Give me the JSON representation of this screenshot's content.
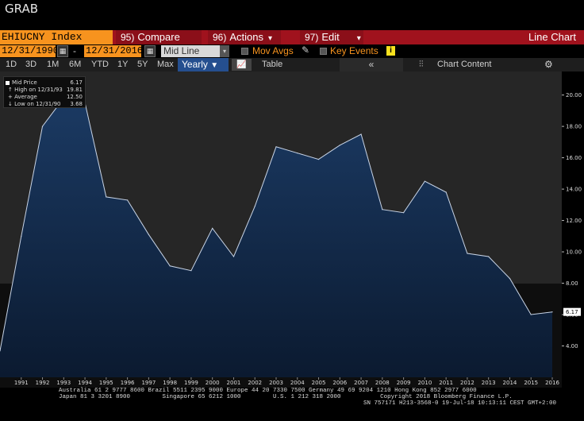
{
  "window": {
    "title": "GRAB"
  },
  "command_bar": {
    "ticker": "EHIUCNY Index",
    "compare": {
      "num": "95)",
      "label": "Compare"
    },
    "actions": {
      "num": "96)",
      "label": "Actions"
    },
    "edit": {
      "num": "97)",
      "label": "Edit"
    },
    "chart_type": "Line Chart"
  },
  "date_bar": {
    "start_date": "12/31/1990",
    "separator": "-",
    "end_date": "12/31/2016",
    "line_type": "Mid Line",
    "mov_avgs": "Mov Avgs",
    "key_events": "Key Events",
    "info": "i"
  },
  "range_bar": {
    "ranges": [
      "1D",
      "3D",
      "1M",
      "6M",
      "YTD",
      "1Y",
      "5Y",
      "Max"
    ],
    "frequency": "Yearly",
    "table": "Table",
    "collapse": "«",
    "chart_content": "Chart Content"
  },
  "legend": {
    "rows": [
      {
        "label": "Mid Price",
        "value": "6.17"
      },
      {
        "label": "High on 12/31/93",
        "value": "19.81"
      },
      {
        "label": "Average",
        "value": "12.50"
      },
      {
        "label": "Low on 12/31/90",
        "value": "3.68"
      }
    ]
  },
  "chart_data": {
    "type": "area",
    "x": [
      1990,
      1991,
      1992,
      1993,
      1994,
      1995,
      1996,
      1997,
      1998,
      1999,
      2000,
      2001,
      2002,
      2003,
      2004,
      2005,
      2006,
      2007,
      2008,
      2009,
      2010,
      2011,
      2012,
      2013,
      2014,
      2015,
      2016
    ],
    "values": [
      3.68,
      11.0,
      18.0,
      19.81,
      19.5,
      13.5,
      13.3,
      11.1,
      9.1,
      8.8,
      11.5,
      9.7,
      12.9,
      16.7,
      16.3,
      15.9,
      16.8,
      17.5,
      12.7,
      12.5,
      14.5,
      13.8,
      9.9,
      9.7,
      8.3,
      6.0,
      6.17
    ],
    "x_tick_labels": [
      "1991",
      "1992",
      "1993",
      "1994",
      "1995",
      "1996",
      "1997",
      "1998",
      "1999",
      "2000",
      "2001",
      "2002",
      "2003",
      "2004",
      "2005",
      "2006",
      "2007",
      "2008",
      "2009",
      "2010",
      "2011",
      "2012",
      "2013",
      "2014",
      "2015",
      "2016"
    ],
    "y_ticks": [
      4,
      6,
      8,
      10,
      12,
      14,
      16,
      18,
      20
    ],
    "y_tick_labels": [
      "4.00",
      "6.00",
      "8.00",
      "10.00",
      "12.00",
      "14.00",
      "16.00",
      "18.00",
      "20.00"
    ],
    "ylim": [
      2,
      21.5
    ],
    "last_value_label": "6.17",
    "grid": false,
    "legend_position": "top-left",
    "colors": {
      "line": "#c8d4e6",
      "fill_top": "#1b3a63",
      "fill_bottom": "#0b1a30",
      "label_bg": "#ffffff"
    }
  },
  "footer": {
    "line1": "Australia 61 2 9777 8600 Brazil 5511 2395 9000 Europe 44 20 7330 7500 Germany 49 69 9204 1210 Hong Kong 852 2977 6000",
    "line2": "Japan 81 3 3201 8900         Singapore 65 6212 1000         U.S. 1 212 318 2000           Copyright 2018 Bloomberg Finance L.P.",
    "line3": "SN 757171 H213-3568-0 19-Jul-18 10:13:11 CEST GMT+2:00"
  }
}
